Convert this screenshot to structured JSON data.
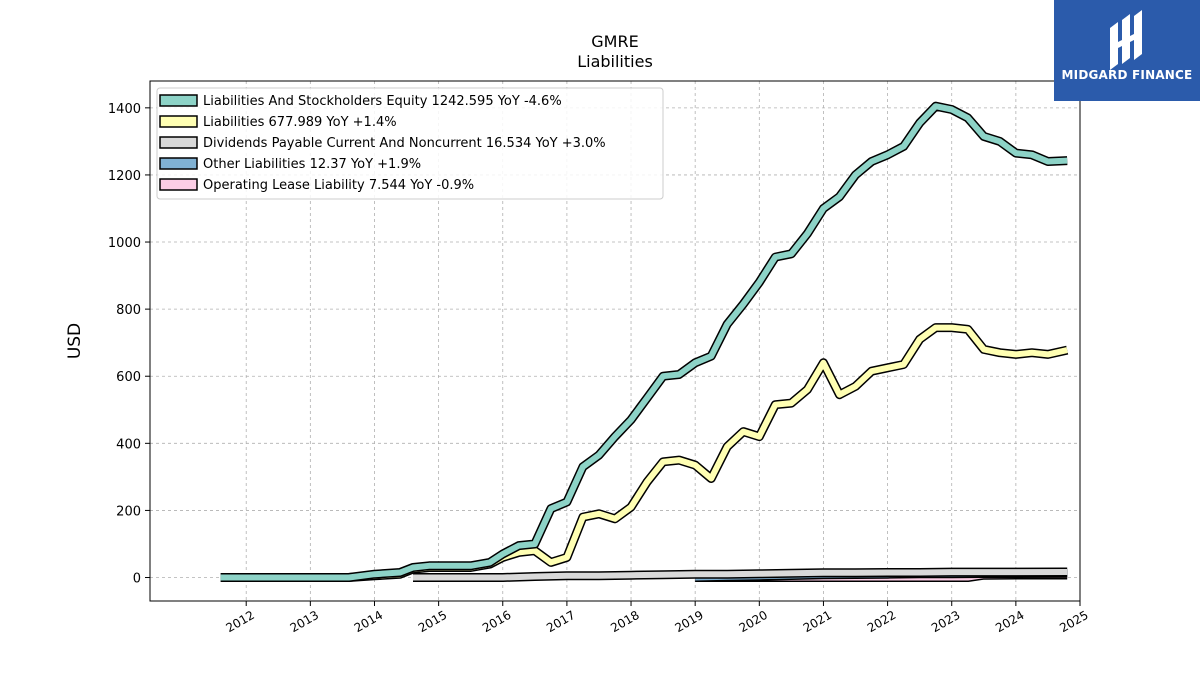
{
  "brand": {
    "name": "MIDGARD FINANCE",
    "bg_color": "#2b5bab"
  },
  "chart_data": {
    "type": "line",
    "title": "GMRE",
    "subtitle": "Liabilities",
    "ylabel": "USD",
    "xlabel": "",
    "ylim": [
      -70,
      1480
    ],
    "xlim": [
      2010.5,
      2025.0
    ],
    "yticks": [
      0,
      200,
      400,
      600,
      800,
      1000,
      1200,
      1400
    ],
    "xticks": [
      2012,
      2013,
      2014,
      2015,
      2016,
      2017,
      2018,
      2019,
      2020,
      2021,
      2022,
      2023,
      2024,
      2025
    ],
    "grid": true,
    "legend_position": "top-left",
    "series": [
      {
        "name": "Liabilities And Stockholders Equity",
        "legend_label": "Liabilities And Stockholders Equity  1242.595 YoY -4.6%",
        "color": "#8dd3c7",
        "x": [
          2011.6,
          2013.6,
          2014.0,
          2014.4,
          2014.6,
          2014.85,
          2015.2,
          2015.5,
          2015.8,
          2016.0,
          2016.25,
          2016.5,
          2016.75,
          2017.0,
          2017.25,
          2017.5,
          2017.75,
          2018.0,
          2018.25,
          2018.5,
          2018.75,
          2019.0,
          2019.25,
          2019.5,
          2019.75,
          2020.0,
          2020.25,
          2020.5,
          2020.75,
          2021.0,
          2021.25,
          2021.5,
          2021.75,
          2022.0,
          2022.25,
          2022.5,
          2022.75,
          2023.0,
          2023.25,
          2023.5,
          2023.75,
          2024.0,
          2024.25,
          2024.5,
          2024.8
        ],
        "values": [
          0,
          0,
          10,
          15,
          30,
          35,
          35,
          35,
          45,
          70,
          95,
          100,
          205,
          225,
          330,
          365,
          420,
          470,
          535,
          600,
          605,
          640,
          660,
          755,
          815,
          880,
          955,
          965,
          1025,
          1100,
          1135,
          1200,
          1240,
          1260,
          1285,
          1355,
          1405,
          1395,
          1370,
          1315,
          1300,
          1265,
          1260,
          1240,
          1242.595
        ]
      },
      {
        "name": "Liabilities",
        "legend_label": "Liabilities  677.989 YoY +1.4%",
        "color": "#ffffb3",
        "x": [
          2013.6,
          2014.0,
          2014.4,
          2014.6,
          2014.85,
          2015.2,
          2015.5,
          2015.8,
          2016.0,
          2016.25,
          2016.5,
          2016.75,
          2017.0,
          2017.25,
          2017.5,
          2017.75,
          2018.0,
          2018.25,
          2018.5,
          2018.75,
          2019.0,
          2019.25,
          2019.5,
          2019.75,
          2020.0,
          2020.25,
          2020.5,
          2020.75,
          2021.0,
          2021.25,
          2021.5,
          2021.75,
          2022.0,
          2022.25,
          2022.5,
          2022.75,
          2023.0,
          2023.25,
          2023.5,
          2023.75,
          2024.0,
          2024.25,
          2024.5,
          2024.8
        ],
        "values": [
          0,
          5,
          10,
          25,
          30,
          30,
          30,
          40,
          60,
          75,
          80,
          45,
          60,
          180,
          190,
          175,
          210,
          285,
          345,
          350,
          335,
          295,
          390,
          435,
          420,
          515,
          520,
          560,
          640,
          545,
          570,
          615,
          625,
          635,
          710,
          745,
          745,
          740,
          680,
          670,
          665,
          670,
          665,
          677.989
        ]
      },
      {
        "name": "Dividends Payable Current And Noncurrent",
        "legend_label": "Dividends Payable Current And Noncurrent  16.534 YoY +3.0%",
        "color": "#d9d9d9",
        "x": [
          2014.6,
          2015.2,
          2016.0,
          2016.5,
          2017.0,
          2017.5,
          2018.0,
          2018.5,
          2019.0,
          2019.5,
          2020.0,
          2020.5,
          2021.0,
          2021.5,
          2022.0,
          2022.5,
          2023.0,
          2023.5,
          2024.0,
          2024.8
        ],
        "values": [
          0,
          0,
          0,
          3,
          5,
          5,
          7,
          8,
          10,
          10,
          11,
          13,
          14,
          14,
          15,
          15,
          16,
          16,
          16,
          16.534
        ]
      },
      {
        "name": "Other Liabilities",
        "legend_label": "Other Liabilities  12.37 YoY +1.9%",
        "color": "#80b1d3",
        "x": [
          2019.0,
          2019.5,
          2020.0,
          2020.5,
          2021.0,
          2021.5,
          2022.0,
          2022.5,
          2023.0,
          2023.5,
          2024.0,
          2024.8
        ],
        "values": [
          0,
          2,
          4,
          6,
          8,
          9,
          10,
          11,
          11,
          12,
          12,
          12.37
        ]
      },
      {
        "name": "Operating Lease Liability",
        "legend_label": "Operating Lease Liability  7.544 YoY -0.9%",
        "color": "#fccde5",
        "x": [
          2019.0,
          2019.5,
          2020.0,
          2020.5,
          2021.0,
          2021.5,
          2022.0,
          2022.5,
          2023.0,
          2023.25,
          2023.5,
          2024.0,
          2024.8
        ],
        "values": [
          0,
          0,
          0,
          0,
          0,
          0,
          0,
          0,
          0,
          0,
          7,
          7.5,
          7.544
        ]
      }
    ]
  }
}
